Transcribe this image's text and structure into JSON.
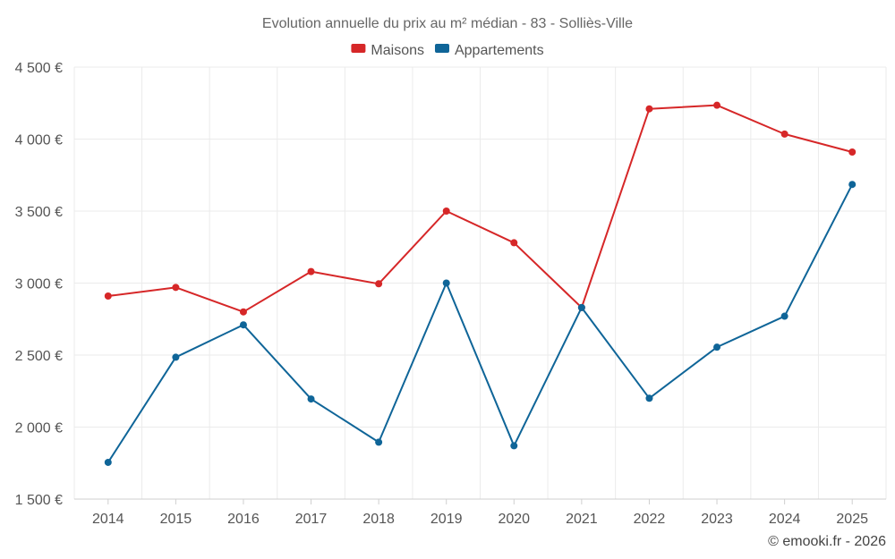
{
  "chart_data": {
    "type": "line",
    "title": "Evolution annuelle du prix au m² médian - 83 - Solliès-Ville",
    "categories": [
      "2014",
      "2015",
      "2016",
      "2017",
      "2018",
      "2019",
      "2020",
      "2021",
      "2022",
      "2023",
      "2024",
      "2025"
    ],
    "series": [
      {
        "name": "Maisons",
        "color": "#d62728",
        "values": [
          2910,
          2970,
          2800,
          3080,
          2995,
          3500,
          3280,
          2830,
          4210,
          4235,
          4035,
          3910
        ]
      },
      {
        "name": "Appartements",
        "color": "#0f6598",
        "values": [
          1755,
          2485,
          2710,
          2195,
          1895,
          3000,
          1870,
          2830,
          2200,
          2555,
          2770,
          3685
        ]
      }
    ],
    "y_ticks": [
      1500,
      2000,
      2500,
      3000,
      3500,
      4000,
      4500
    ],
    "y_tick_labels": [
      "1 500 €",
      "2 000 €",
      "2 500 €",
      "3 000 €",
      "3 500 €",
      "4 000 €",
      "4 500 €"
    ],
    "ylim": [
      1500,
      4500
    ],
    "xlabel": "",
    "ylabel": "",
    "grid": true,
    "legend_position": "top-center"
  },
  "credit": "© emooki.fr - 2026"
}
